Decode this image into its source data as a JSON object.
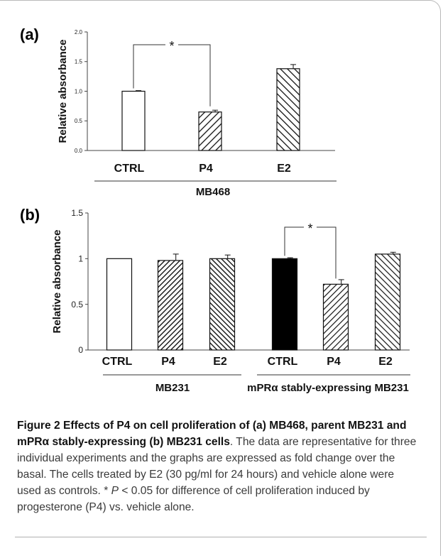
{
  "charts": {
    "a": {
      "panel_label": "(a)"
    },
    "b": {
      "panel_label": "(b)"
    }
  },
  "chart_data": [
    {
      "type": "bar",
      "panel": "(a)",
      "ylabel": "Relative absorbance",
      "ylim": [
        0,
        2.0
      ],
      "yticks": [
        "0.0",
        "0.5",
        "1.0",
        "1.5",
        "2.0"
      ],
      "categories": [
        "CTRL",
        "P4",
        "E2"
      ],
      "values": [
        1.0,
        0.65,
        1.38
      ],
      "errors": [
        0.01,
        0.03,
        0.07
      ],
      "fills": [
        "white",
        "hatch-forward",
        "hatch-backward"
      ],
      "groups": [
        {
          "label": "MB468",
          "from": 0,
          "to": 2
        }
      ],
      "significance": [
        {
          "from": 0,
          "to": 1,
          "label": "*"
        }
      ]
    },
    {
      "type": "bar",
      "panel": "(b)",
      "ylabel": "Relative absorbance",
      "ylim": [
        0,
        1.5
      ],
      "yticks": [
        "0",
        "0.5",
        "1",
        "1.5"
      ],
      "categories": [
        "CTRL",
        "P4",
        "E2",
        "CTRL",
        "P4",
        "E2"
      ],
      "values": [
        1.0,
        0.98,
        1.0,
        1.0,
        0.72,
        1.05
      ],
      "errors": [
        0.0,
        0.07,
        0.04,
        0.01,
        0.05,
        0.02
      ],
      "fills": [
        "white",
        "hatch-forward-dense",
        "hatch-backward-dense",
        "black",
        "hatch-forward",
        "hatch-backward"
      ],
      "groups": [
        {
          "label": "MB231",
          "from": 0,
          "to": 2
        },
        {
          "label": "mPRα stably-expressing MB231",
          "from": 3,
          "to": 5
        }
      ],
      "significance": [
        {
          "from": 3,
          "to": 4,
          "label": "*"
        }
      ]
    }
  ],
  "caption": {
    "title": "Figure 2 Effects of P4 on cell proliferation of (a) MB468, parent MB231 and mPRα stably-expressing (b) MB231 cells",
    "body_1": ". The data are representative for three individual experiments and the graphs are expressed as fold change over the basal. The cells treated by E2 (30 pg/ml for 24 hours) and vehicle alone were used as controls. * ",
    "p_symbol": "P",
    "body_2": " < 0.05 for difference of cell proliferation induced by progesterone (P4) vs. vehicle alone."
  }
}
